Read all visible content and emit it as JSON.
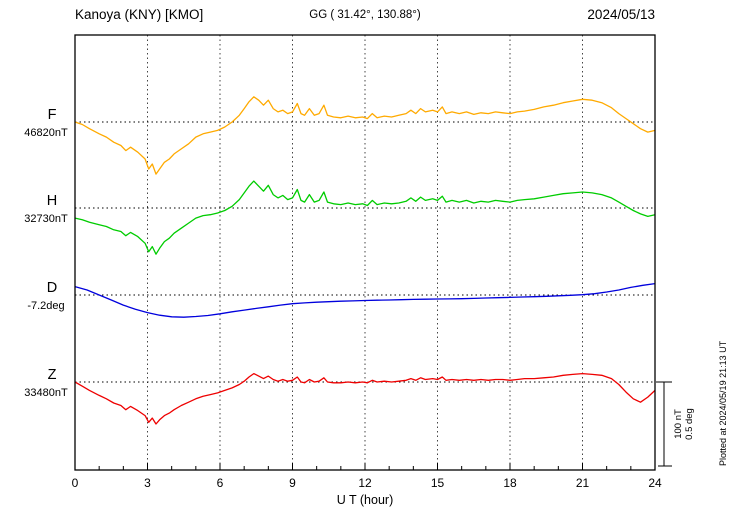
{
  "header": {
    "station": "Kanoya (KNY)  [KMO]",
    "coords": "GG ( 31.42°, 130.88°)",
    "date": "2024/05/13"
  },
  "chart_data": {
    "type": "line",
    "title": "Kanoya (KNY) [KMO] magnetogram 2024/05/13",
    "xlabel": "U T (hour)",
    "x_range": [
      0,
      24
    ],
    "x_ticks": [
      0,
      3,
      6,
      9,
      12,
      15,
      18,
      21,
      24
    ],
    "grid": "dotted vertical lines every 3 h; dotted horizontal baseline per channel",
    "legend_position": "left of each trace baseline",
    "scale_bar": {
      "nt_label": "100 nT",
      "deg_label": "0.5 deg",
      "nt": 100,
      "deg": 0.5
    },
    "side_note": "Plotted at 2024/05/19 21:13 UT",
    "x_shared": [
      0,
      0.3,
      0.6,
      1.0,
      1.3,
      1.6,
      1.9,
      2.1,
      2.3,
      2.6,
      2.9,
      3.05,
      3.2,
      3.35,
      3.5,
      3.7,
      3.9,
      4.1,
      4.4,
      4.7,
      5.0,
      5.3,
      5.6,
      5.9,
      6.2,
      6.5,
      6.8,
      7.0,
      7.2,
      7.4,
      7.6,
      7.8,
      8.0,
      8.2,
      8.4,
      8.6,
      8.8,
      9.0,
      9.2,
      9.35,
      9.5,
      9.7,
      9.9,
      10.1,
      10.3,
      10.45,
      10.7,
      11.0,
      11.3,
      11.6,
      11.9,
      12.1,
      12.3,
      12.5,
      12.8,
      13.1,
      13.4,
      13.7,
      13.9,
      14.1,
      14.3,
      14.5,
      14.8,
      15.0,
      15.2,
      15.35,
      15.6,
      15.9,
      16.2,
      16.5,
      16.8,
      17.1,
      17.4,
      17.7,
      18.0,
      18.3,
      18.6,
      19.0,
      19.4,
      19.8,
      20.2,
      20.6,
      21.0,
      21.4,
      21.8,
      22.2,
      22.5,
      22.8,
      23.1,
      23.4,
      23.7,
      24
    ],
    "series": [
      {
        "name": "F",
        "unit": "nT",
        "color": "#ffaa00",
        "baseline_label": "46820nT",
        "baseline_value": 46820,
        "values": [
          0,
          -3,
          -8,
          -14,
          -18,
          -24,
          -28,
          -34,
          -30,
          -36,
          -44,
          -56,
          -50,
          -62,
          -56,
          -48,
          -44,
          -38,
          -32,
          -26,
          -18,
          -14,
          -12,
          -10,
          -6,
          0,
          8,
          16,
          24,
          30,
          26,
          20,
          26,
          16,
          12,
          14,
          10,
          12,
          22,
          10,
          8,
          16,
          8,
          10,
          20,
          8,
          6,
          5,
          7,
          5,
          6,
          4,
          10,
          5,
          7,
          6,
          8,
          10,
          14,
          10,
          16,
          12,
          14,
          12,
          18,
          10,
          12,
          10,
          12,
          9,
          11,
          10,
          12,
          11,
          10,
          12,
          13,
          15,
          18,
          20,
          23,
          25,
          27,
          26,
          23,
          17,
          10,
          4,
          -2,
          -8,
          -12,
          -10
        ]
      },
      {
        "name": "H",
        "unit": "nT",
        "color": "#00cc00",
        "baseline_label": "32730nT",
        "baseline_value": 32730,
        "values": [
          -12,
          -14,
          -17,
          -20,
          -22,
          -26,
          -28,
          -33,
          -29,
          -34,
          -42,
          -52,
          -46,
          -55,
          -48,
          -40,
          -36,
          -30,
          -24,
          -18,
          -12,
          -9,
          -8,
          -6,
          -3,
          2,
          10,
          18,
          26,
          32,
          26,
          20,
          27,
          16,
          12,
          15,
          10,
          12,
          22,
          9,
          7,
          16,
          7,
          9,
          19,
          7,
          5,
          4,
          6,
          4,
          5,
          3,
          9,
          4,
          6,
          5,
          6,
          8,
          12,
          8,
          13,
          9,
          11,
          9,
          14,
          7,
          9,
          7,
          9,
          6,
          8,
          7,
          9,
          8,
          7,
          9,
          10,
          11,
          13,
          15,
          17,
          18,
          19,
          18,
          16,
          12,
          7,
          2,
          -3,
          -7,
          -10,
          -8
        ]
      },
      {
        "name": "D",
        "unit": "deg",
        "color": "#0000dd",
        "baseline_label": "-7.2deg",
        "baseline_value": -7.2,
        "x": [
          0,
          0.5,
          1,
          1.5,
          2,
          2.5,
          3,
          3.5,
          4,
          4.5,
          5,
          5.5,
          6,
          6.5,
          7,
          7.5,
          8,
          8.5,
          9,
          9.5,
          10,
          10.5,
          11,
          11.5,
          12,
          12.5,
          13,
          13.5,
          14,
          14.5,
          15,
          15.5,
          16,
          16.5,
          17,
          17.5,
          18,
          18.5,
          19,
          19.5,
          20,
          20.5,
          21,
          21.5,
          22,
          22.5,
          23,
          23.5,
          24
        ],
        "values": [
          0.05,
          0.03,
          0.0,
          -0.03,
          -0.06,
          -0.085,
          -0.105,
          -0.12,
          -0.13,
          -0.132,
          -0.128,
          -0.122,
          -0.112,
          -0.1,
          -0.09,
          -0.08,
          -0.07,
          -0.06,
          -0.052,
          -0.047,
          -0.043,
          -0.04,
          -0.037,
          -0.035,
          -0.033,
          -0.031,
          -0.03,
          -0.028,
          -0.026,
          -0.025,
          -0.024,
          -0.023,
          -0.022,
          -0.02,
          -0.018,
          -0.016,
          -0.014,
          -0.012,
          -0.01,
          -0.008,
          -0.005,
          -0.002,
          0.002,
          0.008,
          0.018,
          0.03,
          0.045,
          0.058,
          0.068
        ]
      },
      {
        "name": "Z",
        "unit": "nT",
        "color": "#ee0000",
        "baseline_label": "33480nT",
        "baseline_value": 33480,
        "values": [
          0,
          -5,
          -10,
          -16,
          -20,
          -25,
          -28,
          -33,
          -29,
          -34,
          -40,
          -48,
          -43,
          -50,
          -45,
          -40,
          -37,
          -33,
          -28,
          -24,
          -20,
          -17,
          -15,
          -13,
          -10,
          -7,
          -3,
          1,
          6,
          10,
          7,
          4,
          7,
          3,
          1,
          3,
          1,
          2,
          6,
          0,
          -1,
          3,
          0,
          1,
          5,
          0,
          -1,
          -1,
          0,
          -1,
          0,
          -1,
          2,
          0,
          1,
          0,
          1,
          2,
          4,
          2,
          5,
          3,
          4,
          3,
          6,
          2,
          3,
          2,
          3,
          2,
          3,
          2,
          3,
          3,
          2,
          3,
          4,
          4,
          5,
          6,
          8,
          9,
          10,
          9,
          8,
          4,
          -3,
          -12,
          -20,
          -24,
          -18,
          -10
        ]
      }
    ]
  }
}
